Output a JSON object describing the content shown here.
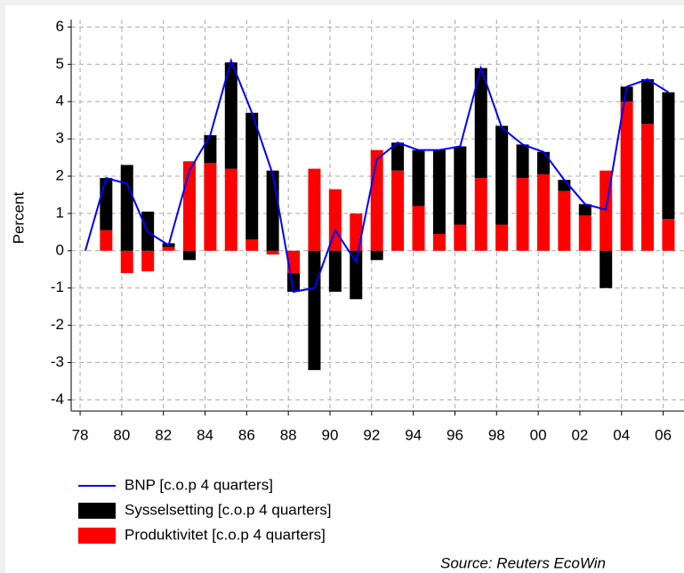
{
  "chart_data": {
    "type": "bar",
    "ylabel": "Percent",
    "source": "Source: Reuters EcoWin",
    "x": [
      1978.25,
      1979.25,
      1980.25,
      1981.25,
      1982.25,
      1983.25,
      1984.25,
      1985.25,
      1986.25,
      1987.25,
      1988.25,
      1989.25,
      1990.25,
      1991.25,
      1992.25,
      1993.25,
      1994.25,
      1995.25,
      1996.25,
      1997.25,
      1998.25,
      1999.25,
      2000.25,
      2001.25,
      2002.25,
      2003.25,
      2004.25,
      2005.25,
      2006.25
    ],
    "series": [
      {
        "name": "BNP [c.o.p 4 quarters]",
        "color": "#0000ff",
        "kind": "line",
        "values": [
          0,
          1.95,
          1.8,
          0.5,
          0.15,
          2.15,
          3.1,
          5.1,
          3.7,
          2.05,
          -1.1,
          -1.0,
          0.55,
          -0.3,
          2.45,
          2.9,
          2.7,
          2.7,
          2.8,
          4.9,
          3.3,
          2.85,
          2.65,
          1.9,
          1.25,
          1.1,
          4.4,
          4.6,
          4.25
        ]
      },
      {
        "name": "Sysselsetting [c.o.p 4 quarters]",
        "color": "#000000",
        "kind": "bar",
        "values": [
          0,
          1.4,
          2.3,
          1.05,
          0.1,
          -0.25,
          0.75,
          2.85,
          3.4,
          2.15,
          -0.5,
          -3.2,
          -1.1,
          -1.3,
          -0.25,
          0.75,
          1.5,
          2.25,
          2.1,
          2.95,
          2.65,
          0.9,
          0.6,
          0.3,
          0.3,
          -1.0,
          0.4,
          1.2,
          3.4
        ]
      },
      {
        "name": "Produktivitet [c.o.p 4 quarters]",
        "color": "#ff0000",
        "kind": "bar",
        "values": [
          0,
          0.55,
          -0.6,
          -0.55,
          0.1,
          2.4,
          2.35,
          2.2,
          0.3,
          -0.1,
          -0.6,
          2.2,
          1.65,
          1.0,
          2.7,
          2.15,
          1.2,
          0.45,
          0.7,
          1.95,
          0.7,
          1.95,
          2.05,
          1.6,
          0.95,
          2.15,
          4.0,
          3.4,
          0.85
        ]
      }
    ],
    "xlim": [
      1977.57,
      2007.0
    ],
    "xticks": [
      {
        "value": 1978,
        "label": "78"
      },
      {
        "value": 1980,
        "label": "80"
      },
      {
        "value": 1982,
        "label": "82"
      },
      {
        "value": 1984,
        "label": "84"
      },
      {
        "value": 1986,
        "label": "86"
      },
      {
        "value": 1988,
        "label": "88"
      },
      {
        "value": 1990,
        "label": "90"
      },
      {
        "value": 1992,
        "label": "92"
      },
      {
        "value": 1994,
        "label": "94"
      },
      {
        "value": 1996,
        "label": "96"
      },
      {
        "value": 1998,
        "label": "98"
      },
      {
        "value": 2000,
        "label": "00"
      },
      {
        "value": 2002,
        "label": "02"
      },
      {
        "value": 2004,
        "label": "04"
      },
      {
        "value": 2006,
        "label": "06"
      }
    ],
    "ylim": [
      -4.3,
      6.2
    ],
    "yticks": [
      -4,
      -3,
      -2,
      -1,
      0,
      1,
      2,
      3,
      4,
      5,
      6
    ],
    "grid": true
  }
}
